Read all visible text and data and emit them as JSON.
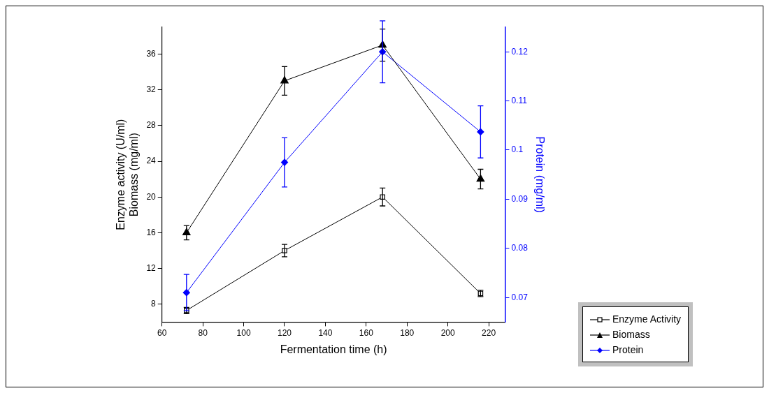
{
  "chart_data": {
    "type": "line",
    "xlabel": "Fermentation time (h)",
    "ylabel": "Enzyme activity (U/ml)\nBiomass (mg/ml)",
    "y2label": "Protein (mg/ml)",
    "x": [
      72,
      120,
      168,
      216
    ],
    "xlim": [
      60,
      228
    ],
    "xticks": [
      60,
      80,
      100,
      120,
      140,
      160,
      180,
      200,
      220
    ],
    "ylim": [
      6,
      39
    ],
    "yticks": [
      8,
      12,
      16,
      20,
      24,
      28,
      32,
      36
    ],
    "y2lim": [
      0.065,
      0.125
    ],
    "y2ticks": [
      0.07,
      0.08,
      0.09,
      0.1,
      0.11,
      0.12
    ],
    "grid": false,
    "legend": "bottom right",
    "line_style": "solid",
    "series": [
      {
        "name": "Enzyme Activity",
        "color": "#000000",
        "marker": "square",
        "values": [
          7.3,
          14,
          20,
          9.2
        ],
        "errors": [
          0.35,
          0.7,
          1.0,
          0.35
        ]
      },
      {
        "name": "Biomass",
        "color": "#000000",
        "marker": "triangle",
        "values": [
          16,
          33,
          37,
          22
        ],
        "errors": [
          0.8,
          1.6,
          1.8,
          1.1
        ]
      },
      {
        "name": "Protein",
        "color": "#0000ff",
        "marker": "diamond",
        "axis": "y2",
        "values": [
          0.071,
          0.0975,
          0.12,
          0.1037
        ],
        "errors": [
          0.0037,
          0.005,
          0.0063,
          0.0053
        ]
      }
    ]
  }
}
